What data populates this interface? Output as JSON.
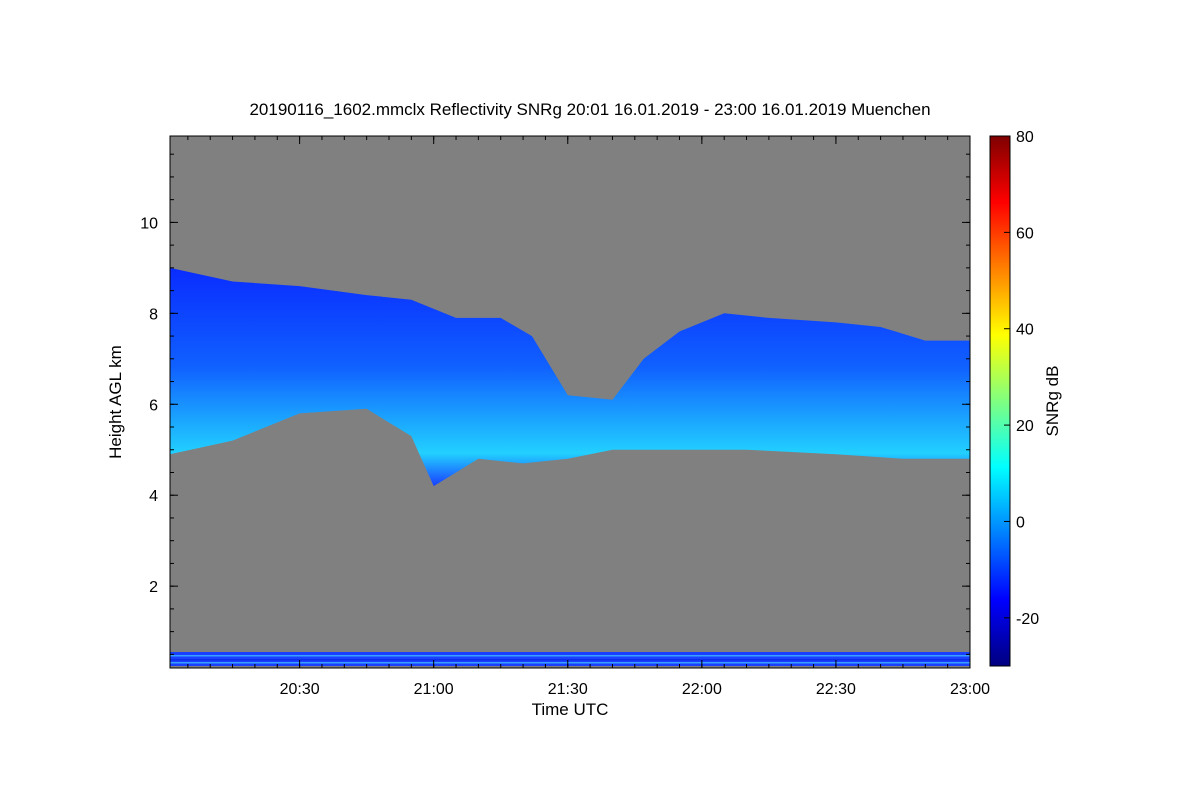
{
  "chart_data": {
    "type": "heatmap",
    "title": "20190116_1602.mmclx Reflectivity SNRg   20:01 16.01.2019 - 23:00 16.01.2019 Muenchen",
    "xlabel": "Time UTC",
    "ylabel": "Height AGL km",
    "colorbar_label": "SNRg dB",
    "x_range": [
      "20:01",
      "23:00"
    ],
    "x_ticks": [
      "20:30",
      "21:00",
      "21:30",
      "22:00",
      "22:30",
      "23:00"
    ],
    "ylim": [
      0.2,
      11.9
    ],
    "y_ticks": [
      2,
      4,
      6,
      8,
      10
    ],
    "colorbar_range": [
      -30,
      80
    ],
    "colorbar_ticks": [
      -20,
      0,
      20,
      40,
      60,
      80
    ],
    "background_color": "#808080",
    "colormap": [
      "#00007f",
      "#0000ff",
      "#0080ff",
      "#00ffff",
      "#80ff80",
      "#ffff00",
      "#ff8000",
      "#ff0000",
      "#7f0000"
    ],
    "cloud_top_km": [
      [
        "20:01",
        9.0
      ],
      [
        "20:15",
        8.7
      ],
      [
        "20:30",
        8.6
      ],
      [
        "20:45",
        8.4
      ],
      [
        "20:55",
        8.3
      ],
      [
        "21:05",
        7.9
      ],
      [
        "21:15",
        7.9
      ],
      [
        "21:22",
        7.5
      ],
      [
        "21:30",
        6.2
      ],
      [
        "21:40",
        6.1
      ],
      [
        "21:47",
        7.0
      ],
      [
        "21:55",
        7.6
      ],
      [
        "22:05",
        8.0
      ],
      [
        "22:15",
        7.9
      ],
      [
        "22:30",
        7.8
      ],
      [
        "22:40",
        7.7
      ],
      [
        "22:50",
        7.4
      ],
      [
        "23:00",
        7.4
      ]
    ],
    "cloud_base_km": [
      [
        "20:01",
        4.9
      ],
      [
        "20:15",
        5.2
      ],
      [
        "20:30",
        5.8
      ],
      [
        "20:45",
        5.9
      ],
      [
        "20:55",
        5.3
      ],
      [
        "21:00",
        4.2
      ],
      [
        "21:10",
        4.8
      ],
      [
        "21:20",
        4.7
      ],
      [
        "21:30",
        4.8
      ],
      [
        "21:40",
        5.0
      ],
      [
        "21:50",
        5.0
      ],
      [
        "22:00",
        5.0
      ],
      [
        "22:10",
        5.0
      ],
      [
        "22:30",
        4.9
      ],
      [
        "22:45",
        4.8
      ],
      [
        "23:00",
        4.8
      ]
    ]
  }
}
